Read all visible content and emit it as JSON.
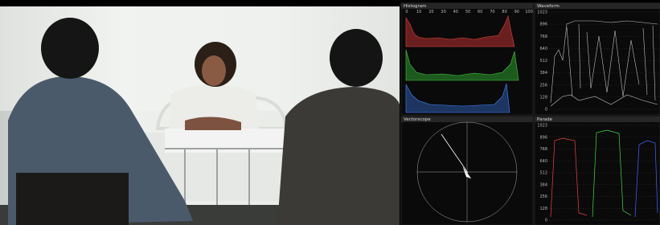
{
  "scopes": {
    "histogram": {
      "title": "Histogram",
      "ticks": [
        0,
        10,
        20,
        30,
        40,
        50,
        60,
        70,
        80,
        90,
        100
      ]
    },
    "waveform": {
      "title": "Waveform",
      "ticks": [
        1023,
        896,
        768,
        640,
        512,
        384,
        256,
        128,
        0
      ]
    },
    "vectorscope": {
      "title": "Vectorscope"
    },
    "parade": {
      "title": "Parade",
      "ticks": [
        1023,
        896,
        768,
        640,
        512,
        384,
        256,
        128,
        0
      ]
    }
  }
}
